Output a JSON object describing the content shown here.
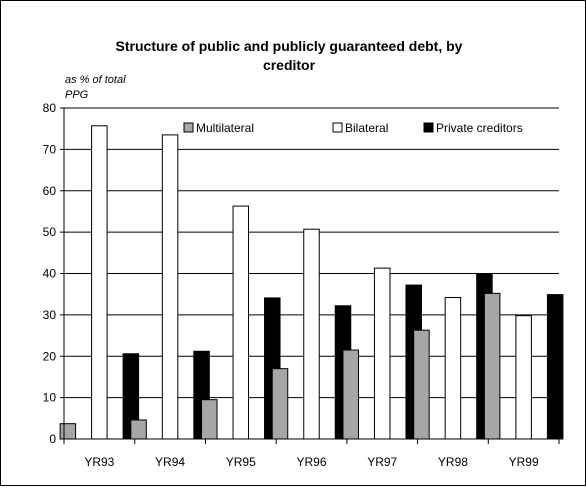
{
  "chart_data": {
    "type": "bar",
    "title_line1": "Structure of public and publicly guaranteed debt, by",
    "title_line2": "creditor",
    "ylabel_line1": "as % of total",
    "ylabel_line2": "PPG",
    "xlabel": "",
    "ylim": [
      0,
      80
    ],
    "yticks": [
      0,
      10,
      20,
      30,
      40,
      50,
      60,
      70,
      80
    ],
    "grid": true,
    "legend_position": "top",
    "categories": [
      "YR93",
      "YR94",
      "YR95",
      "YR96",
      "YR97",
      "YR98",
      "YR99"
    ],
    "series": [
      {
        "name": "Multilateral",
        "color": "#a6a6a6",
        "values": [
          3.7,
          4.6,
          9.5,
          17,
          21.5,
          26.3,
          35.2
        ]
      },
      {
        "name": "Bilateral",
        "color": "#ffffff",
        "values": [
          75.7,
          73.5,
          56.3,
          50.7,
          41.3,
          34.2,
          29.8
        ]
      },
      {
        "name": "Private creditors",
        "color": "#000000",
        "values": [
          20.6,
          21.2,
          34.1,
          32.2,
          37.2,
          39.8,
          34.9
        ]
      }
    ]
  }
}
